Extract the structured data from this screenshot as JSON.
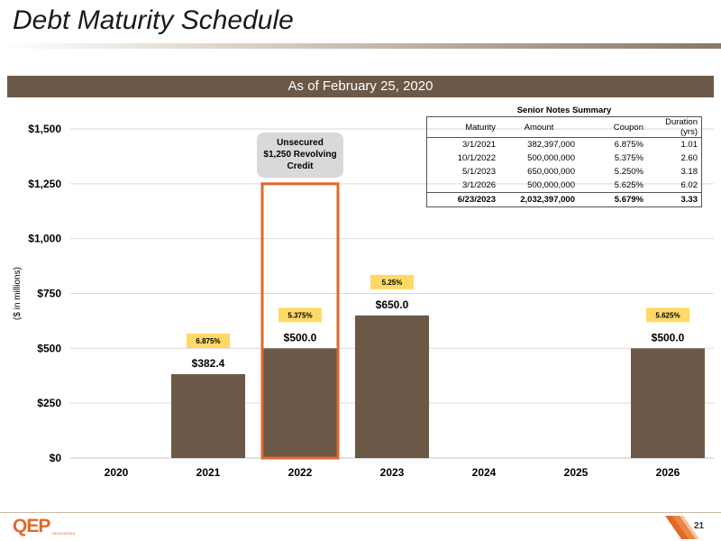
{
  "page": {
    "title": "Debt Maturity Schedule",
    "banner": "As of February 25, 2020",
    "page_number": "21",
    "logo_text": "QEP",
    "logo_sub": "RESOURCES"
  },
  "colors": {
    "bar": "#6b5847",
    "highlight": "#e0692a",
    "callout": "#d9d9d9",
    "rate_label": "#ffd966",
    "banner": "#6b5847",
    "grid": "#d9d9d9"
  },
  "senior_notes": {
    "title": "Senior  Notes Summary",
    "headers": [
      "Maturity",
      "Amount",
      "Coupon",
      "Duration (yrs)"
    ],
    "rows": [
      [
        "3/1/2021",
        "382,397,000",
        "6.875%",
        "1.01"
      ],
      [
        "10/1/2022",
        "500,000,000",
        "5.375%",
        "2.60"
      ],
      [
        "5/1/2023",
        "650,000,000",
        "5.250%",
        "3.18"
      ],
      [
        "3/1/2026",
        "500,000,000",
        "5.625%",
        "6.02"
      ]
    ],
    "total": [
      "6/23/2023",
      "2,032,397,000",
      "5.679%",
      "3.33"
    ]
  },
  "chart_data": {
    "type": "bar",
    "title": "",
    "xlabel": "",
    "ylabel": "($ in millions)",
    "categories": [
      "2020",
      "2021",
      "2022",
      "2023",
      "2024",
      "2025",
      "2026"
    ],
    "values": [
      0,
      382.4,
      500.0,
      650.0,
      0,
      0,
      500.0
    ],
    "value_labels": [
      "",
      "$382.4",
      "$500.0",
      "$650.0",
      "",
      "",
      "$500.0"
    ],
    "rate_labels": [
      "",
      "6.875%",
      "5.375%",
      "5.25%",
      "",
      "",
      "5.625%"
    ],
    "ylim": [
      0,
      1500
    ],
    "yticks": [
      0,
      250,
      500,
      750,
      1000,
      1250,
      1500
    ],
    "ytick_labels": [
      "$0",
      "$250",
      "$500",
      "$750",
      "$1,000",
      "$1,250",
      "$1,500"
    ],
    "grid": true,
    "revolving_credit": {
      "category": "2022",
      "value": 1250,
      "label_lines": [
        "Unsecured",
        "$1,250 Revolving",
        "Credit"
      ]
    }
  }
}
